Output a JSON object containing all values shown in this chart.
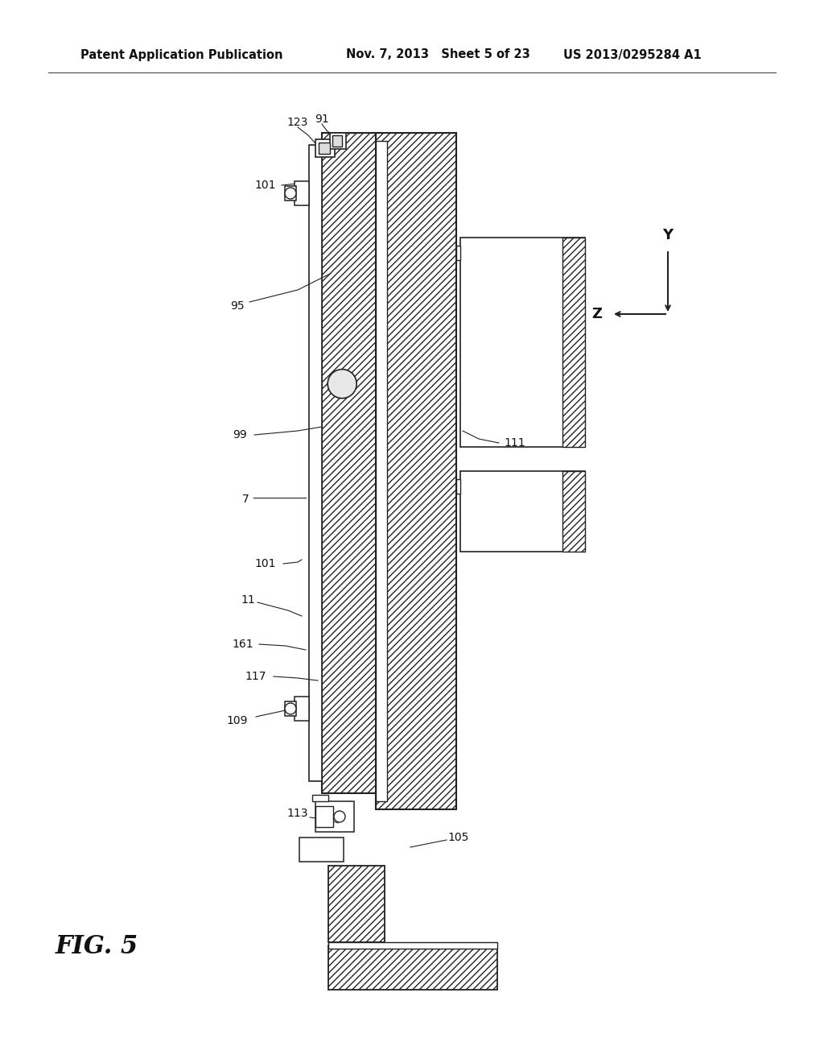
{
  "bg_color": "#ffffff",
  "header_left": "Patent Application Publication",
  "header_mid": "Nov. 7, 2013   Sheet 5 of 23",
  "header_right": "US 2013/0295284 A1",
  "fig_label": "FIG. 5",
  "line_color": "#222222",
  "title_fontsize": 10.5,
  "label_fontsize": 10
}
